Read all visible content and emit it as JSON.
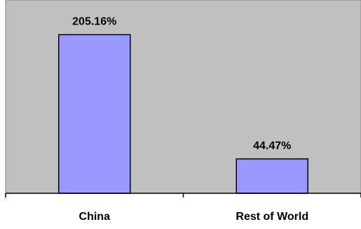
{
  "chart_data": {
    "type": "bar",
    "categories": [
      "China",
      "Rest of World"
    ],
    "values": [
      205.16,
      44.47
    ],
    "data_labels": [
      "205.16%",
      "44.47%"
    ],
    "ylim": [
      0,
      250
    ],
    "grid": false,
    "legend": "none",
    "colors": {
      "plot_background": "#c0c0c0",
      "bar_fill": "#9999ff",
      "bar_stroke": "#000000",
      "axis": "#000000",
      "page_background": "#ffffff"
    }
  }
}
